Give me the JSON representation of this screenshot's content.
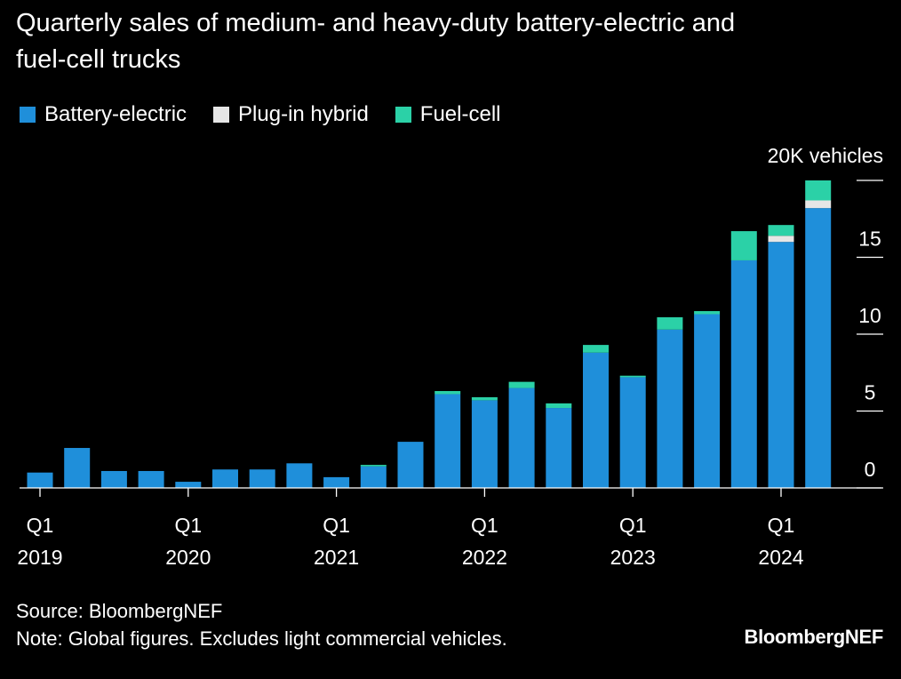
{
  "header": {
    "title_line1": "Quarterly sales of medium- and heavy-duty battery-electric and",
    "title_line2": "fuel-cell trucks"
  },
  "footer": {
    "source": "Source: BloombergNEF",
    "note": "Note: Global figures. Excludes light commercial vehicles.",
    "brand": "BloombergNEF"
  },
  "chart_data": {
    "type": "bar",
    "stacked": true,
    "title": "Quarterly sales of medium- and heavy-duty battery-electric and fuel-cell trucks",
    "ylabel": "20K vehicles",
    "unit": "K vehicles",
    "ylim": [
      0,
      20
    ],
    "y_ticks": [
      {
        "value": 0,
        "label": "0"
      },
      {
        "value": 5,
        "label": "5"
      },
      {
        "value": 10,
        "label": "10"
      },
      {
        "value": 15,
        "label": "15"
      },
      {
        "value": 20,
        "label": ""
      }
    ],
    "y_top_label": "20K vehicles",
    "grid": false,
    "legend_position": "top-left",
    "categories": [
      "Q1 2019",
      "Q2 2019",
      "Q3 2019",
      "Q4 2019",
      "Q1 2020",
      "Q2 2020",
      "Q3 2020",
      "Q4 2020",
      "Q1 2021",
      "Q2 2021",
      "Q3 2021",
      "Q4 2021",
      "Q1 2022",
      "Q2 2022",
      "Q3 2022",
      "Q4 2022",
      "Q1 2023",
      "Q2 2023",
      "Q3 2023",
      "Q4 2023",
      "Q1 2024",
      "Q2 2024"
    ],
    "x_labels": [
      {
        "index": 0,
        "quarter": "Q1",
        "year": "2019"
      },
      {
        "index": 4,
        "quarter": "Q1",
        "year": "2020"
      },
      {
        "index": 8,
        "quarter": "Q1",
        "year": "2021"
      },
      {
        "index": 12,
        "quarter": "Q1",
        "year": "2022"
      },
      {
        "index": 16,
        "quarter": "Q1",
        "year": "2023"
      },
      {
        "index": 20,
        "quarter": "Q1",
        "year": "2024"
      }
    ],
    "series": [
      {
        "name": "Battery-electric",
        "color": "#1f8fda",
        "values": [
          1.0,
          2.6,
          1.1,
          1.1,
          0.4,
          1.2,
          1.2,
          1.6,
          0.7,
          1.4,
          3.0,
          6.1,
          5.7,
          6.5,
          5.2,
          8.8,
          7.2,
          10.3,
          11.3,
          14.8,
          16.0,
          18.2
        ]
      },
      {
        "name": "Plug-in hybrid",
        "color": "#e6e6e6",
        "values": [
          0,
          0,
          0,
          0,
          0,
          0,
          0,
          0,
          0,
          0,
          0,
          0,
          0,
          0,
          0,
          0,
          0,
          0,
          0,
          0,
          0.4,
          0.5
        ]
      },
      {
        "name": "Fuel-cell",
        "color": "#2bd1a7",
        "values": [
          0,
          0,
          0,
          0,
          0,
          0,
          0,
          0,
          0,
          0.1,
          0,
          0.2,
          0.2,
          0.4,
          0.3,
          0.5,
          0.1,
          0.8,
          0.2,
          1.9,
          0.7,
          1.3
        ]
      }
    ]
  }
}
